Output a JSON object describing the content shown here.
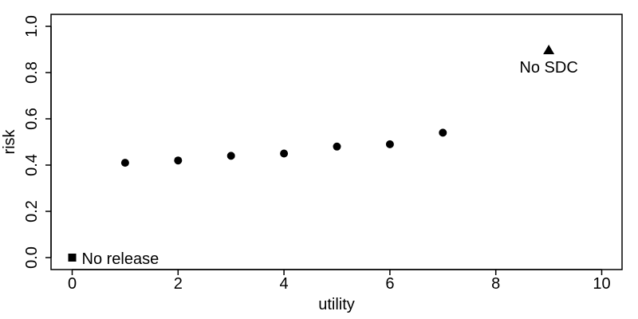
{
  "chart_data": {
    "type": "scatter",
    "title": "",
    "xlabel": "utility",
    "ylabel": "risk",
    "xlim": [
      0,
      10
    ],
    "ylim": [
      0,
      1.0
    ],
    "x_ticks": [
      "0",
      "2",
      "4",
      "6",
      "8",
      "10"
    ],
    "y_ticks": [
      "0.0",
      "0.2",
      "0.4",
      "0.6",
      "0.8",
      "1.0"
    ],
    "grid": false,
    "series": [
      {
        "marker": "circle",
        "color": "#000000",
        "points": [
          {
            "x": 1,
            "y": 0.41
          },
          {
            "x": 2,
            "y": 0.42
          },
          {
            "x": 3,
            "y": 0.44
          },
          {
            "x": 4,
            "y": 0.45
          },
          {
            "x": 5,
            "y": 0.48
          },
          {
            "x": 6,
            "y": 0.49
          },
          {
            "x": 7,
            "y": 0.54
          }
        ]
      },
      {
        "marker": "square",
        "color": "#000000",
        "points": [
          {
            "x": 0,
            "y": 0.0
          }
        ]
      },
      {
        "marker": "triangle",
        "color": "#000000",
        "points": [
          {
            "x": 9,
            "y": 0.9
          }
        ]
      }
    ],
    "annotations": [
      {
        "text": "No release",
        "x": 0,
        "y": 0.0
      },
      {
        "text": "No SDC",
        "x": 9,
        "y": 0.9
      }
    ]
  }
}
